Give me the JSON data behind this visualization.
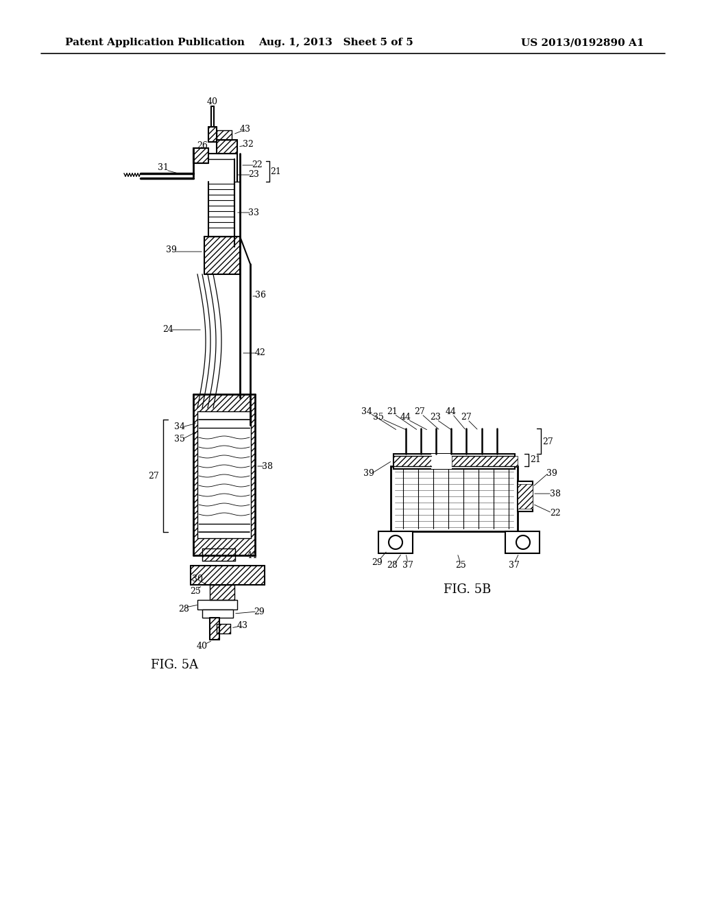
{
  "background_color": "#ffffff",
  "header_left": "Patent Application Publication",
  "header_center": "Aug. 1, 2013   Sheet 5 of 5",
  "header_right": "US 2013/0192890 A1",
  "header_fontsize": 11,
  "fig5a_label": "FIG. 5A",
  "fig5b_label": "FIG. 5B",
  "label_fontsize": 10,
  "ref_fontsize": 9
}
